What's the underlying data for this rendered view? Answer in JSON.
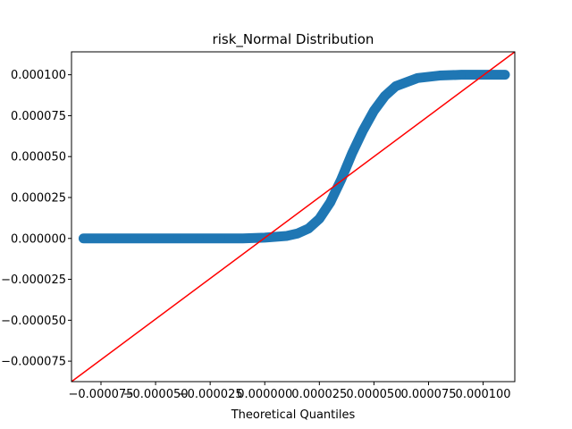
{
  "chart_data": {
    "type": "scatter",
    "title": "risk_Normal Distribution",
    "xlabel": "Theoretical Quantiles",
    "ylabel": "",
    "xlim": [
      -8.85e-05,
      0.0001145
    ],
    "ylim": [
      -8.75e-05,
      0.000114
    ],
    "xticks": [
      -7.5e-05,
      -5e-05,
      -2.5e-05,
      0.0,
      2.5e-05,
      5e-05,
      7.5e-05,
      0.0001
    ],
    "xtick_labels": [
      "−0.000075",
      "−0.000050",
      "−0.000025",
      "0.000000",
      "0.000025",
      "0.000050",
      "0.000075",
      "0.000100"
    ],
    "yticks": [
      -7.5e-05,
      -5e-05,
      -2.5e-05,
      0.0,
      2.5e-05,
      5e-05,
      7.5e-05,
      0.0001
    ],
    "ytick_labels": [
      "−0.000075",
      "−0.000050",
      "−0.000025",
      "0.000000",
      "0.000025",
      "0.000050",
      "0.000075",
      "0.000100"
    ],
    "grid": false,
    "series": [
      {
        "kind": "points",
        "color": "#1f77b4",
        "x": [
          -8.3e-05,
          -8e-05,
          -7e-05,
          -6e-05,
          -5e-05,
          -4e-05,
          -3e-05,
          -2e-05,
          -1e-05,
          0.0,
          1e-05,
          1.5e-05,
          2e-05,
          2.5e-05,
          3e-05,
          3.5e-05,
          4e-05,
          4.5e-05,
          5e-05,
          5.5e-05,
          6e-05,
          7e-05,
          8e-05,
          9e-05,
          0.0001,
          0.000105,
          0.00011
        ],
        "y": [
          0.0,
          0.0,
          0.0,
          0.0,
          0.0,
          0.0,
          0.0,
          0.0,
          0.0,
          5e-07,
          1.5e-06,
          3e-06,
          6e-06,
          1.2e-05,
          2.2e-05,
          3.6e-05,
          5.2e-05,
          6.6e-05,
          7.8e-05,
          8.7e-05,
          9.3e-05,
          9.8e-05,
          9.95e-05,
          0.0001,
          0.0001,
          0.0001,
          0.0001
        ]
      },
      {
        "kind": "line",
        "color": "#ff0000",
        "x": [
          -8.85e-05,
          0.0001145
        ],
        "y": [
          -8.75e-05,
          0.000114
        ]
      }
    ]
  }
}
